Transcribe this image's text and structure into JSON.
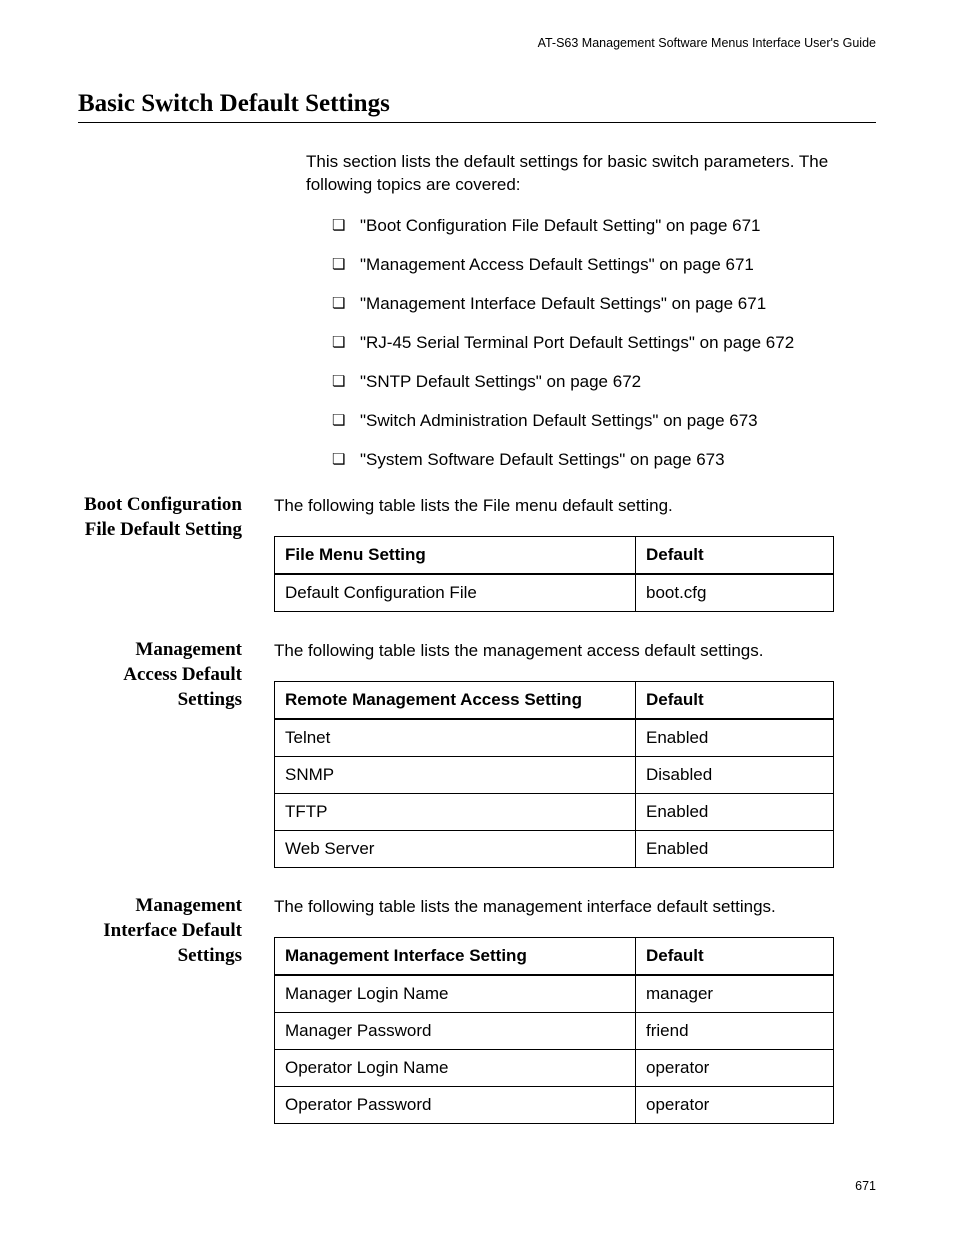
{
  "header": {
    "running": "AT-S63 Management Software Menus Interface User's Guide"
  },
  "title": "Basic Switch Default Settings",
  "intro": "This section lists the default settings for basic switch parameters. The following topics are covered:",
  "toc": [
    "\"Boot Configuration File Default Setting\" on page 671",
    "\"Management Access Default Settings\" on page 671",
    "\"Management Interface Default Settings\" on page 671",
    "\"RJ-45 Serial Terminal Port Default Settings\" on page 672",
    "\"SNTP Default Settings\" on page 672",
    "\"Switch Administration Default Settings\" on page 673",
    "\"System Software Default Settings\" on page 673"
  ],
  "sections": {
    "boot": {
      "heading": "Boot Configuration File Default Setting",
      "intro": "The following table lists the File menu default setting.",
      "columns": [
        "File Menu Setting",
        "Default"
      ],
      "rows": [
        [
          "Default Configuration File",
          "boot.cfg"
        ]
      ]
    },
    "access": {
      "heading": "Management Access Default Settings",
      "intro": "The following table lists the management access default settings.",
      "columns": [
        "Remote Management Access Setting",
        "Default"
      ],
      "rows": [
        [
          "Telnet",
          "Enabled"
        ],
        [
          "SNMP",
          "Disabled"
        ],
        [
          "TFTP",
          "Enabled"
        ],
        [
          "Web Server",
          "Enabled"
        ]
      ]
    },
    "interface": {
      "heading": "Management Interface Default Settings",
      "intro": "The following table lists the management interface default settings.",
      "columns": [
        "Management Interface Setting",
        "Default"
      ],
      "rows": [
        [
          "Manager Login Name",
          "manager"
        ],
        [
          "Manager Password",
          "friend"
        ],
        [
          "Operator Login Name",
          "operator"
        ],
        [
          "Operator Password",
          "operator"
        ]
      ]
    }
  },
  "pageNumber": "671"
}
